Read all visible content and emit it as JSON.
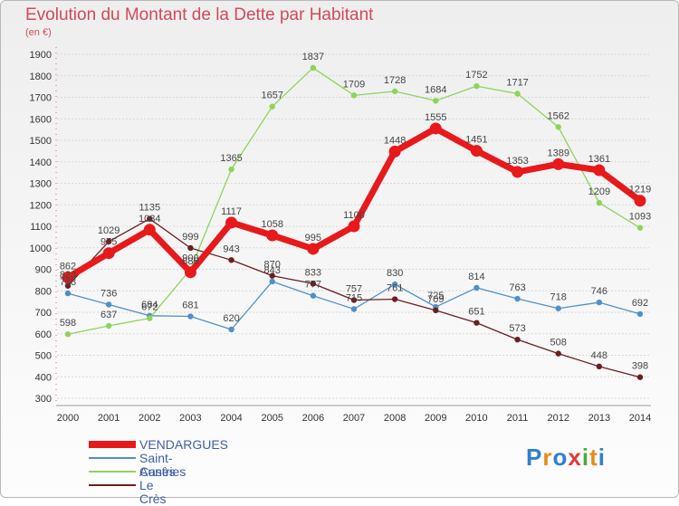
{
  "header": {
    "title": "Evolution du Montant de la Dette par Habitant",
    "subtitle": "(en €)"
  },
  "logo": {
    "letters": [
      "P",
      "r",
      "o",
      "x",
      "i",
      "t",
      "i"
    ],
    "colors": [
      "#2f7fd0",
      "#e88a1a",
      "#2f7fd0",
      "#e03a3a",
      "#49a93c",
      "#e88a1a",
      "#2f7fd0"
    ]
  },
  "chart_data": {
    "type": "line",
    "title": "Evolution du Montant de la Dette par Habitant",
    "subtitle": "(en €)",
    "x": [
      2000,
      2001,
      2002,
      2003,
      2004,
      2005,
      2006,
      2007,
      2008,
      2009,
      2010,
      2011,
      2012,
      2013,
      2014
    ],
    "ylim": [
      300,
      1900
    ],
    "yticks": [
      300,
      400,
      500,
      600,
      700,
      800,
      900,
      1000,
      1100,
      1200,
      1300,
      1400,
      1500,
      1600,
      1700,
      1800,
      1900
    ],
    "grid": true,
    "legend_position": "bottom-left",
    "series": [
      {
        "name": "VENDARGUES",
        "color": "#e8191a",
        "width": 7,
        "values": [
          862,
          975,
          1084,
          886,
          1117,
          1058,
          995,
          1100,
          1448,
          1555,
          1451,
          1353,
          1389,
          1361,
          1219
        ],
        "labels": [
          "862",
          "975",
          "1084",
          "886",
          "1117",
          "1058",
          "995",
          "1100",
          "1448",
          "1555",
          "1451",
          "1353",
          "1389",
          "1361",
          "1219"
        ]
      },
      {
        "name": "Saint-Aunès",
        "color": "#4f91c7",
        "width": 1.3,
        "values": [
          788,
          736,
          684,
          681,
          620,
          843,
          777,
          715,
          830,
          725,
          814,
          763,
          718,
          746,
          692
        ],
        "labels": [
          "788",
          "736",
          "684",
          "681",
          "620",
          "843",
          "777",
          "715",
          "830",
          "725",
          "814",
          "763",
          "718",
          "746",
          "692"
        ]
      },
      {
        "name": "Castries",
        "color": "#8ed35b",
        "width": 1.3,
        "values": [
          598,
          637,
          672,
          900,
          1365,
          1657,
          1837,
          1709,
          1728,
          1684,
          1752,
          1717,
          1562,
          1209,
          1093
        ],
        "labels": [
          "598",
          "637",
          "672",
          "900",
          "1365",
          "1657",
          "1837",
          "1709",
          "1728",
          "1684",
          "1752",
          "1717",
          "1562",
          "1209",
          "1093"
        ]
      },
      {
        "name": "Le Crès",
        "color": "#6b1f1f",
        "width": 1.3,
        "values": [
          823,
          1029,
          1135,
          999,
          943,
          870,
          833,
          757,
          761,
          709,
          651,
          573,
          508,
          448,
          398
        ],
        "labels": [
          "823",
          "1029",
          "1135",
          "999",
          "943",
          "870",
          "833",
          "757",
          "761",
          "709",
          "651",
          "573",
          "508",
          "448",
          "398"
        ]
      }
    ]
  }
}
